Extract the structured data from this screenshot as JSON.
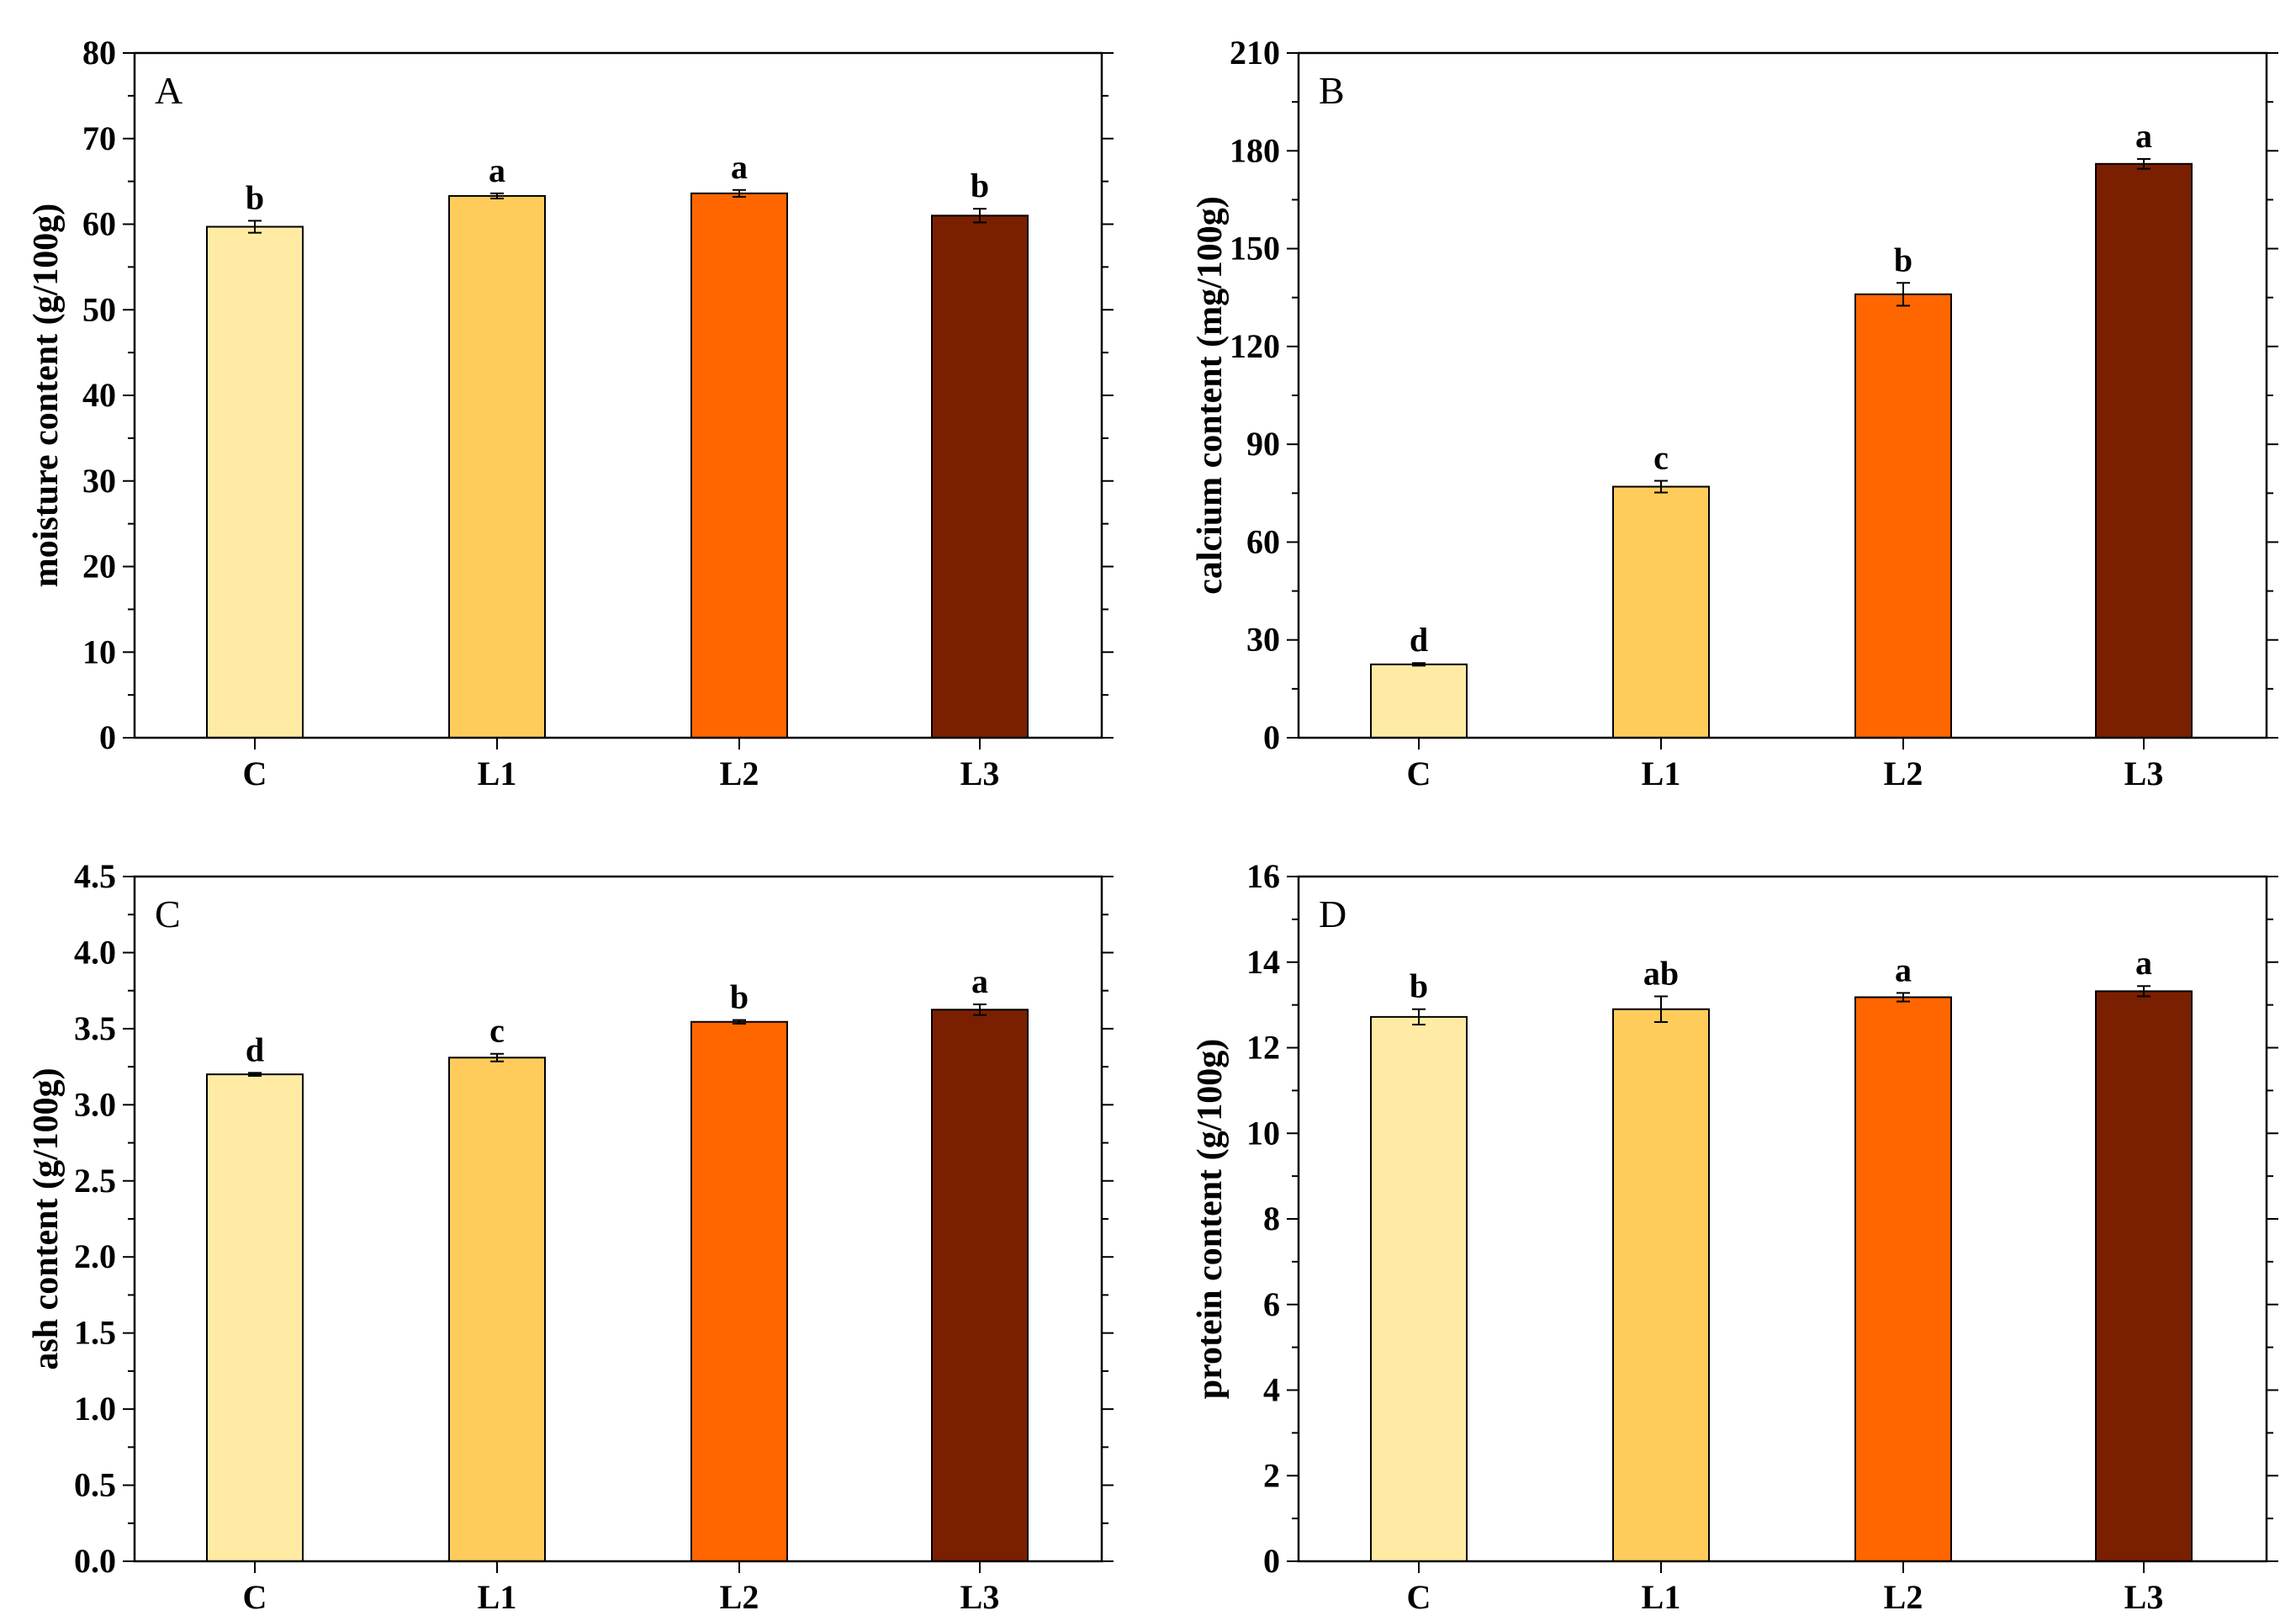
{
  "colors": {
    "C": "#FFEBA4",
    "L1": "#FFCC5C",
    "L2": "#FF6600",
    "L3": "#7A2000",
    "axis": "#000000"
  },
  "chart_data": [
    {
      "type": "bar",
      "panel": "A",
      "categories": [
        "C",
        "L1",
        "L2",
        "L3"
      ],
      "values": [
        59.7,
        63.3,
        63.6,
        61.0
      ],
      "errors": [
        0.7,
        0.3,
        0.4,
        0.8
      ],
      "significance": [
        "b",
        "a",
        "a",
        "b"
      ],
      "ylabel": "moisture content (g/100g)",
      "ylim": [
        0,
        80
      ],
      "yticks": [
        0,
        10,
        20,
        30,
        40,
        50,
        60,
        70,
        80
      ],
      "ytick_labels": [
        "0",
        "10",
        "20",
        "30",
        "40",
        "50",
        "60",
        "70",
        "80"
      ]
    },
    {
      "type": "bar",
      "panel": "B",
      "categories": [
        "C",
        "L1",
        "L2",
        "L3"
      ],
      "values": [
        22.5,
        77.0,
        136.0,
        176.0
      ],
      "errors": [
        0.4,
        1.8,
        3.5,
        1.5
      ],
      "significance": [
        "d",
        "c",
        "b",
        "a"
      ],
      "ylabel": "calcium content (mg/100g)",
      "ylim": [
        0,
        210
      ],
      "yticks": [
        0,
        30,
        60,
        90,
        120,
        150,
        180,
        210
      ],
      "ytick_labels": [
        "0",
        "30",
        "60",
        "90",
        "120",
        "150",
        "180",
        "210"
      ]
    },
    {
      "type": "bar",
      "panel": "C",
      "categories": [
        "C",
        "L1",
        "L2",
        "L3"
      ],
      "values": [
        3.2,
        3.31,
        3.545,
        3.625
      ],
      "errors": [
        0.01,
        0.025,
        0.012,
        0.035
      ],
      "significance": [
        "d",
        "c",
        "b",
        "a"
      ],
      "ylabel": "ash content (g/100g)",
      "ylim": [
        0,
        4.5
      ],
      "yticks": [
        0,
        0.5,
        1.0,
        1.5,
        2.0,
        2.5,
        3.0,
        3.5,
        4.0,
        4.5
      ],
      "ytick_labels": [
        "0.0",
        "0.5",
        "1.0",
        "1.5",
        "2.0",
        "2.5",
        "3.0",
        "3.5",
        "4.0",
        "4.5"
      ]
    },
    {
      "type": "bar",
      "panel": "D",
      "categories": [
        "C",
        "L1",
        "L2",
        "L3"
      ],
      "values": [
        12.72,
        12.9,
        13.18,
        13.32
      ],
      "errors": [
        0.18,
        0.3,
        0.1,
        0.12
      ],
      "significance": [
        "b",
        "ab",
        "a",
        "a"
      ],
      "ylabel": "protein content (g/100g)",
      "ylim": [
        0,
        16
      ],
      "yticks": [
        0,
        2,
        4,
        6,
        8,
        10,
        12,
        14,
        16
      ],
      "ytick_labels": [
        "0",
        "2",
        "4",
        "6",
        "8",
        "10",
        "12",
        "14",
        "16"
      ]
    }
  ]
}
